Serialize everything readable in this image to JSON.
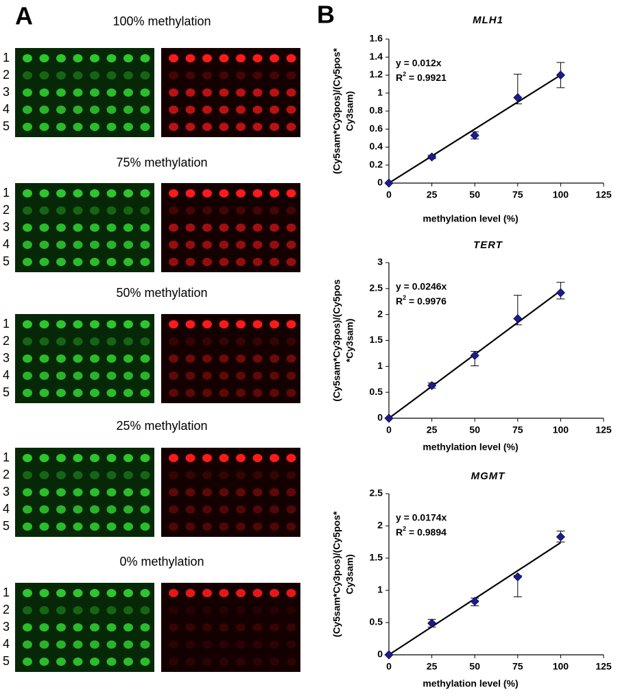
{
  "panel_a": {
    "label": "A",
    "arrays": [
      {
        "title": "100% methylation",
        "rows": [
          "1",
          "2",
          "3",
          "4",
          "5"
        ]
      },
      {
        "title": "75% methylation",
        "rows": [
          "1",
          "2",
          "3",
          "4",
          "5"
        ]
      },
      {
        "title": "50% methylation",
        "rows": [
          "1",
          "2",
          "3",
          "4",
          "5"
        ]
      },
      {
        "title": "25% methylation",
        "rows": [
          "1",
          "2",
          "3",
          "4",
          "5"
        ]
      },
      {
        "title": "0% methylation",
        "rows": [
          "1",
          "2",
          "3",
          "4",
          "5"
        ]
      }
    ]
  },
  "panel_b": {
    "label": "B"
  },
  "chart_data": [
    {
      "type": "scatter",
      "title": "MLH1",
      "xlabel": "methylation level (%)",
      "ylabel": [
        "(Cy5sam*Cy3pos)/(Cy5pos*",
        "Cy3sam)"
      ],
      "equation": "y = 0.012x",
      "r_squared": {
        "prefix": "R",
        "sup": "2",
        "text": " = 0.9921"
      },
      "fit_slope": 0.012,
      "color": "#1c1c8f",
      "x": [
        0,
        25,
        50,
        75,
        100
      ],
      "values": [
        0,
        0.29,
        0.53,
        0.95,
        1.2
      ],
      "error_plus": [
        0,
        0.02,
        0.04,
        0.26,
        0.14
      ],
      "error_minus": [
        0,
        0.02,
        0.04,
        0.07,
        0.14
      ],
      "xlim": [
        0,
        125
      ],
      "xticks": [
        0,
        25,
        50,
        75,
        100,
        125
      ],
      "ylim": [
        0,
        1.6
      ],
      "yticks": [
        0,
        0.2,
        0.4,
        0.6,
        0.8,
        1,
        1.2,
        1.4,
        1.6
      ],
      "grid": false
    },
    {
      "type": "scatter",
      "title": "TERT",
      "xlabel": "methylation level (%)",
      "ylabel": [
        "(Cy5sam*Cy3pos)/(Cy5pos",
        "*Cy3sam)"
      ],
      "equation": "y = 0.0246x",
      "r_squared": {
        "prefix": "R",
        "sup": "2",
        "text": " = 0.9976"
      },
      "fit_slope": 0.0246,
      "color": "#1c1c8f",
      "x": [
        0,
        25,
        50,
        75,
        100
      ],
      "values": [
        0,
        0.63,
        1.21,
        1.92,
        2.42
      ],
      "error_plus": [
        0,
        0.05,
        0.08,
        0.45,
        0.2
      ],
      "error_minus": [
        0,
        0.05,
        0.2,
        0.12,
        0.12
      ],
      "xlim": [
        0,
        125
      ],
      "xticks": [
        0,
        25,
        50,
        75,
        100,
        125
      ],
      "ylim": [
        0,
        3
      ],
      "yticks": [
        0,
        0.5,
        1,
        1.5,
        2,
        2.5,
        3
      ],
      "grid": false
    },
    {
      "type": "scatter",
      "title": "MGMT",
      "xlabel": "methylation level (%)",
      "ylabel": [
        "(Cy5sam*Cy3pos)/(Cy5pos*",
        "Cy3sam)"
      ],
      "equation": "y = 0.0174x",
      "r_squared": {
        "prefix": "R",
        "sup": "2",
        "text": " = 0.9894"
      },
      "fit_slope": 0.0174,
      "color": "#1c1c8f",
      "x": [
        0,
        25,
        50,
        75,
        100
      ],
      "values": [
        0,
        0.49,
        0.83,
        1.21,
        1.83
      ],
      "error_plus": [
        0,
        0.06,
        0.05,
        0.02,
        0.09
      ],
      "error_minus": [
        0,
        0.06,
        0.07,
        0.31,
        0.08
      ],
      "xlim": [
        0,
        125
      ],
      "xticks": [
        0,
        25,
        50,
        75,
        100,
        125
      ],
      "ylim": [
        0,
        2.5
      ],
      "yticks": [
        0,
        0.5,
        1,
        1.5,
        2,
        2.5
      ],
      "grid": false
    }
  ]
}
